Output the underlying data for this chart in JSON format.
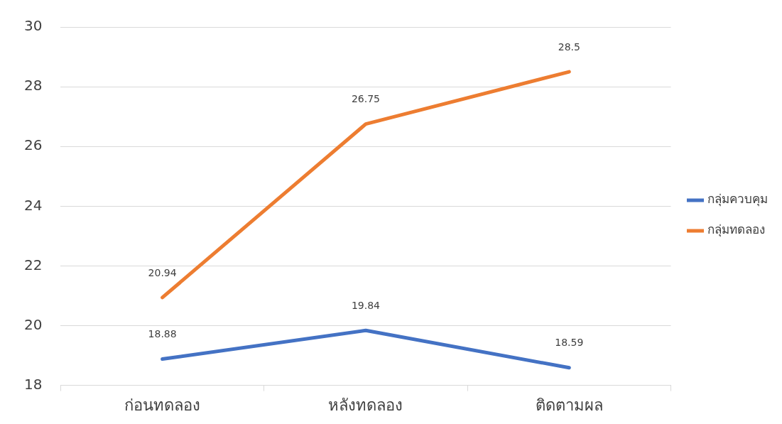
{
  "chart_data": {
    "type": "line",
    "categories": [
      "ก่อนทดลอง",
      "หลังทดลอง",
      "ติดตามผล"
    ],
    "series": [
      {
        "name": "กลุ่มควบคุม",
        "color": "#4472c4",
        "values": [
          18.88,
          19.84,
          18.59
        ]
      },
      {
        "name": "กลุ่มทดลอง",
        "color": "#ed7d31",
        "values": [
          20.94,
          26.75,
          28.5
        ]
      }
    ],
    "ylim": [
      18,
      30
    ],
    "yticks": [
      18,
      20,
      22,
      24,
      26,
      28,
      30
    ],
    "grid": "y",
    "legend": "right",
    "marker": "none",
    "line_style": "solid",
    "data_labels": true
  }
}
